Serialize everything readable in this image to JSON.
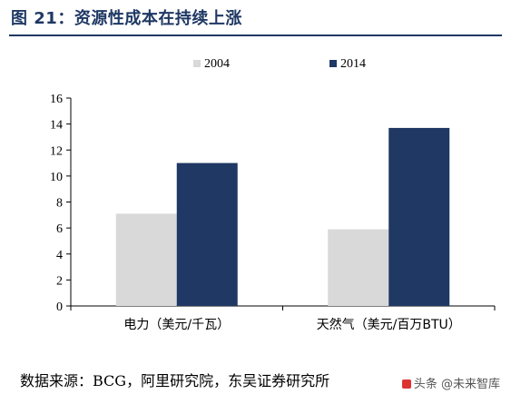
{
  "figure": {
    "title": "图 21：资源性成本在持续上涨",
    "source": "数据来源：BCG，阿里研究院，东吴证券研究所",
    "watermark": "头条 @未来智库"
  },
  "chart_data": {
    "type": "bar",
    "title": "",
    "xlabel": "",
    "ylabel": "",
    "categories": [
      "电力（美元/千瓦）",
      "天然气（美元/百万BTU）"
    ],
    "series": [
      {
        "name": "2004",
        "values": [
          7.1,
          5.9
        ],
        "color": "#d9d9d9"
      },
      {
        "name": "2014",
        "values": [
          11.0,
          13.7
        ],
        "color": "#1f3864"
      }
    ],
    "ylim": [
      0,
      16
    ],
    "yticks": [
      0,
      2,
      4,
      6,
      8,
      10,
      12,
      14,
      16
    ],
    "grid": false,
    "legend": "top-center"
  }
}
